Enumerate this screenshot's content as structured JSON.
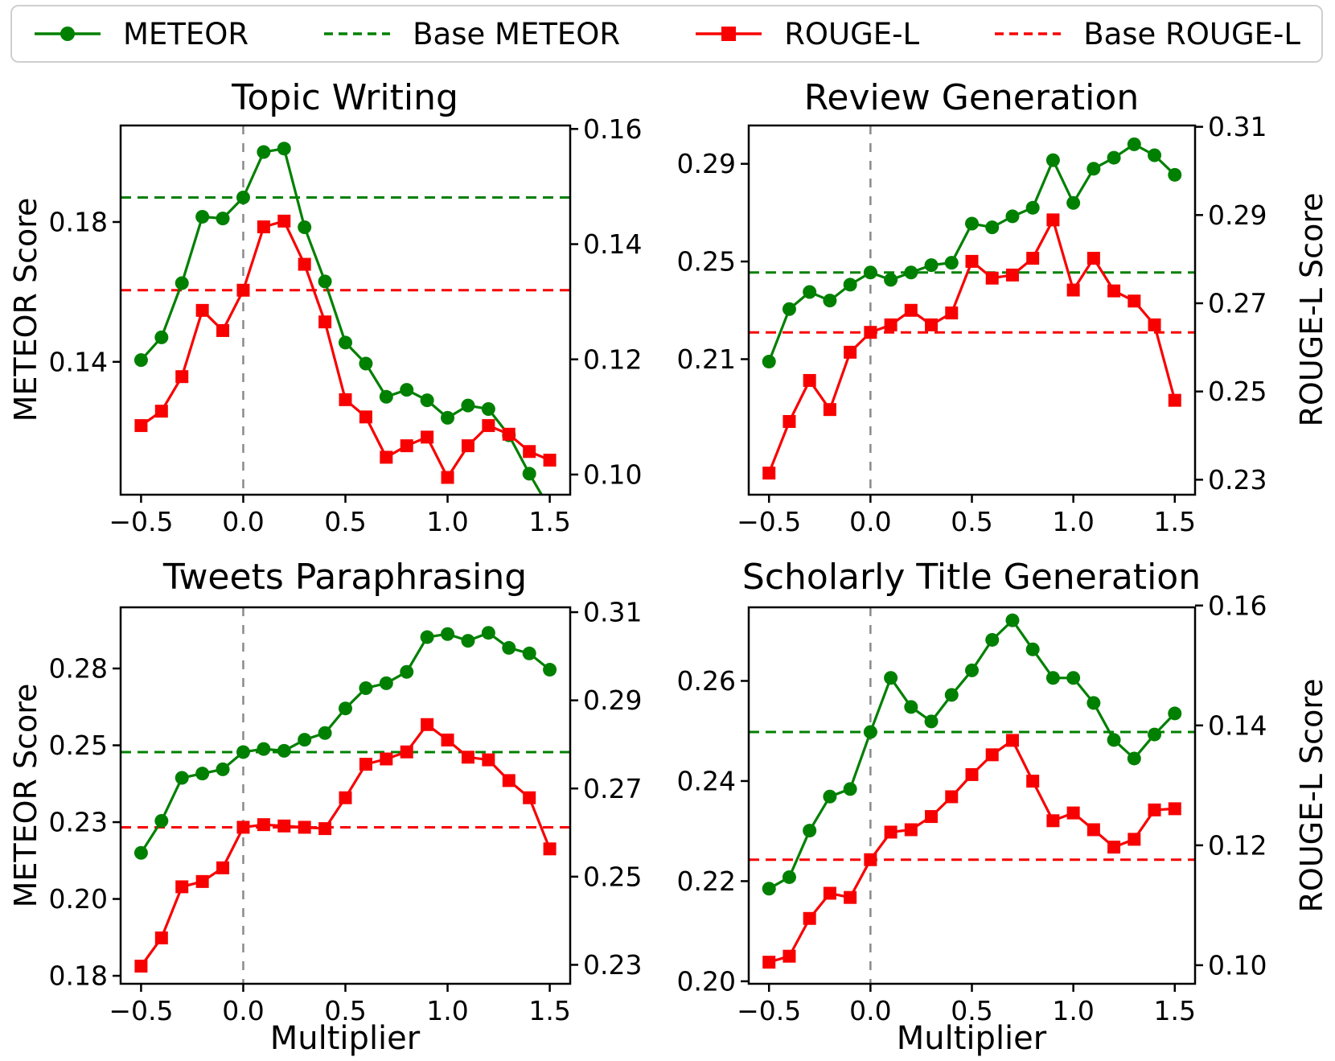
{
  "figure": {
    "xlabel": "Multiplier",
    "left_axis_label": "METEOR Score",
    "right_axis_label": "ROUGE-L Score"
  },
  "colors": {
    "meteor_green": "#008000",
    "rouge_red": "#f80000",
    "vline_gray": "#8a8a8a",
    "legend_border": "#cfcfcf"
  },
  "legend": {
    "position": "top",
    "items": [
      {
        "label": "METEOR",
        "color": "#008000",
        "dash": false,
        "marker": "circle"
      },
      {
        "label": "Base METEOR",
        "color": "#008000",
        "dash": true,
        "marker": "none"
      },
      {
        "label": "ROUGE-L",
        "color": "#f80000",
        "dash": false,
        "marker": "square"
      },
      {
        "label": "Base ROUGE-L",
        "color": "#f80000",
        "dash": true,
        "marker": "none"
      }
    ]
  },
  "x_values": [
    -0.5,
    -0.4,
    -0.3,
    -0.2,
    -0.1,
    0.0,
    0.1,
    0.2,
    0.3,
    0.4,
    0.5,
    0.6,
    0.7,
    0.8,
    0.9,
    1.0,
    1.1,
    1.2,
    1.3,
    1.4,
    1.5
  ],
  "x_tick_values": [
    -0.5,
    0.0,
    0.5,
    1.0,
    1.5
  ],
  "x_tick_labels": [
    "−0.5",
    "0.0",
    "0.5",
    "1.0",
    "1.5"
  ],
  "xlim": [
    -0.6,
    1.6
  ],
  "chart_data": [
    {
      "type": "line",
      "title": "Topic Writing",
      "vline_x": 0.0,
      "left_axis": {
        "lim": [
          0.102,
          0.2076
        ],
        "tick_values": [
          0.14,
          0.18
        ],
        "tick_labels": [
          "0.14",
          "0.18"
        ]
      },
      "right_axis": {
        "lim": [
          0.0965,
          0.1606
        ],
        "tick_values": [
          0.1,
          0.12,
          0.14,
          0.16
        ],
        "tick_labels": [
          "0.10",
          "0.12",
          "0.14",
          "0.16"
        ]
      },
      "series": [
        {
          "name": "METEOR",
          "axis": "left",
          "values": [
            0.1405,
            0.147,
            0.1625,
            0.1815,
            0.181,
            0.187,
            0.2,
            0.201,
            0.1785,
            0.163,
            0.1455,
            0.1395,
            0.13,
            0.132,
            0.129,
            0.124,
            0.1275,
            0.1265,
            0.119,
            0.108,
            0.098
          ]
        },
        {
          "name": "ROUGE-L",
          "axis": "right",
          "values": [
            0.1085,
            0.111,
            0.117,
            0.1285,
            0.125,
            0.132,
            0.143,
            0.144,
            0.1365,
            0.1265,
            0.113,
            0.11,
            0.103,
            0.105,
            0.1065,
            0.0995,
            0.105,
            0.1085,
            0.107,
            0.104,
            0.1025
          ]
        }
      ],
      "baselines": [
        {
          "name": "Base METEOR",
          "axis": "left",
          "value": 0.187
        },
        {
          "name": "Base ROUGE-L",
          "axis": "right",
          "value": 0.132
        }
      ],
      "show_xlabel": false,
      "show_left_label": true,
      "show_right_label": false
    },
    {
      "type": "line",
      "title": "Review Generation",
      "vline_x": 0.0,
      "left_axis": {
        "lim": [
          0.1545,
          0.3057
        ],
        "tick_values": [
          0.21,
          0.25,
          0.29
        ],
        "tick_labels": [
          "0.21",
          "0.25",
          "0.29"
        ]
      },
      "right_axis": {
        "lim": [
          0.2266,
          0.3103
        ],
        "tick_values": [
          0.23,
          0.25,
          0.27,
          0.29,
          0.31
        ],
        "tick_labels": [
          "0.23",
          "0.25",
          "0.27",
          "0.29",
          "0.31"
        ]
      },
      "series": [
        {
          "name": "METEOR",
          "axis": "left",
          "values": [
            0.209,
            0.2305,
            0.2375,
            0.234,
            0.2405,
            0.2455,
            0.2425,
            0.2455,
            0.2485,
            0.2495,
            0.2655,
            0.264,
            0.2685,
            0.272,
            0.2915,
            0.274,
            0.288,
            0.2925,
            0.298,
            0.2935,
            0.2855
          ]
        },
        {
          "name": "ROUGE-L",
          "axis": "right",
          "values": [
            0.2315,
            0.2432,
            0.2525,
            0.2459,
            0.2589,
            0.2634,
            0.2651,
            0.2684,
            0.2651,
            0.2678,
            0.2795,
            0.2757,
            0.2764,
            0.2802,
            0.2889,
            0.273,
            0.2802,
            0.2728,
            0.2705,
            0.2651,
            0.248
          ]
        }
      ],
      "baselines": [
        {
          "name": "Base METEOR",
          "axis": "left",
          "value": 0.2455
        },
        {
          "name": "Base ROUGE-L",
          "axis": "right",
          "value": 0.2634
        }
      ],
      "show_xlabel": false,
      "show_left_label": false,
      "show_right_label": true
    },
    {
      "type": "line",
      "title": "Tweets Paraphrasing",
      "vline_x": 0.0,
      "left_axis": {
        "lim": [
          0.1774,
          0.2999
        ],
        "tick_values": [
          0.18,
          0.205,
          0.23,
          0.255,
          0.28
        ],
        "tick_labels": [
          "0.18",
          "0.20",
          "0.23",
          "0.25",
          "0.28"
        ]
      },
      "right_axis": {
        "lim": [
          0.2257,
          0.3111
        ],
        "tick_values": [
          0.23,
          0.25,
          0.27,
          0.29,
          0.31
        ],
        "tick_labels": [
          "0.23",
          "0.25",
          "0.27",
          "0.29",
          "0.31"
        ]
      },
      "series": [
        {
          "name": "METEOR",
          "axis": "left",
          "values": [
            0.22,
            0.2304,
            0.2444,
            0.2458,
            0.2472,
            0.2528,
            0.2538,
            0.2532,
            0.2568,
            0.259,
            0.267,
            0.2736,
            0.2752,
            0.2789,
            0.2902,
            0.2912,
            0.289,
            0.2916,
            0.2867,
            0.2849,
            0.2796
          ]
        },
        {
          "name": "ROUGE-L",
          "axis": "right",
          "values": [
            0.2297,
            0.2361,
            0.2477,
            0.2489,
            0.252,
            0.2612,
            0.2618,
            0.2615,
            0.2612,
            0.2609,
            0.2679,
            0.2755,
            0.2767,
            0.2783,
            0.2845,
            0.281,
            0.2771,
            0.2765,
            0.2718,
            0.2679,
            0.2563
          ]
        }
      ],
      "baselines": [
        {
          "name": "Base METEOR",
          "axis": "left",
          "value": 0.2528
        },
        {
          "name": "Base ROUGE-L",
          "axis": "right",
          "value": 0.2612
        }
      ],
      "show_xlabel": true,
      "show_left_label": true,
      "show_right_label": false
    },
    {
      "type": "line",
      "title": "Scholarly Title Generation",
      "vline_x": 0.0,
      "left_axis": {
        "lim": [
          0.1995,
          0.2747
        ],
        "tick_values": [
          0.2,
          0.22,
          0.24,
          0.26
        ],
        "tick_labels": [
          "0.20",
          "0.22",
          "0.24",
          "0.26"
        ]
      },
      "right_axis": {
        "lim": [
          0.0969,
          0.1597
        ],
        "tick_values": [
          0.1,
          0.12,
          0.14,
          0.16
        ],
        "tick_labels": [
          "0.10",
          "0.12",
          "0.14",
          "0.16"
        ]
      },
      "series": [
        {
          "name": "METEOR",
          "axis": "left",
          "values": [
            0.2185,
            0.2208,
            0.2301,
            0.2369,
            0.2384,
            0.2498,
            0.2606,
            0.2548,
            0.2519,
            0.2572,
            0.2621,
            0.2682,
            0.2721,
            0.2663,
            0.2606,
            0.2606,
            0.2556,
            0.2482,
            0.2445,
            0.2493,
            0.2535
          ]
        },
        {
          "name": "ROUGE-L",
          "axis": "right",
          "values": [
            0.1005,
            0.1015,
            0.1078,
            0.112,
            0.1113,
            0.1176,
            0.1222,
            0.1226,
            0.1248,
            0.1281,
            0.1318,
            0.1351,
            0.1375,
            0.1307,
            0.1241,
            0.1254,
            0.1226,
            0.1197,
            0.121,
            0.1259,
            0.1261
          ]
        }
      ],
      "baselines": [
        {
          "name": "Base METEOR",
          "axis": "left",
          "value": 0.2498
        },
        {
          "name": "Base ROUGE-L",
          "axis": "right",
          "value": 0.1176
        }
      ],
      "show_xlabel": true,
      "show_left_label": false,
      "show_right_label": true
    }
  ]
}
